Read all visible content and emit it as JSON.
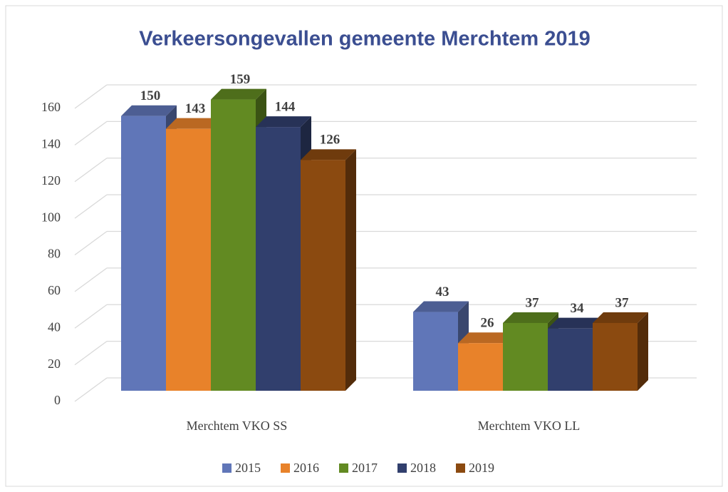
{
  "chart_data": {
    "type": "bar3d",
    "title": "Verkeersongevallen gemeente Merchtem 2019",
    "categories": [
      "Merchtem VKO SS",
      "Merchtem VKO LL"
    ],
    "series": [
      {
        "name": "2015",
        "color": "#6076b8",
        "values": [
          150,
          43
        ]
      },
      {
        "name": "2016",
        "color": "#e8822a",
        "values": [
          143,
          26
        ]
      },
      {
        "name": "2017",
        "color": "#628a22",
        "values": [
          159,
          37
        ]
      },
      {
        "name": "2018",
        "color": "#313f6d",
        "values": [
          144,
          34
        ]
      },
      {
        "name": "2019",
        "color": "#8b4a10",
        "values": [
          126,
          37
        ]
      }
    ],
    "ylim": [
      0,
      160
    ],
    "yticks": [
      0,
      20,
      40,
      60,
      80,
      100,
      120,
      140,
      160
    ],
    "grid": true,
    "legend": "bottom"
  }
}
